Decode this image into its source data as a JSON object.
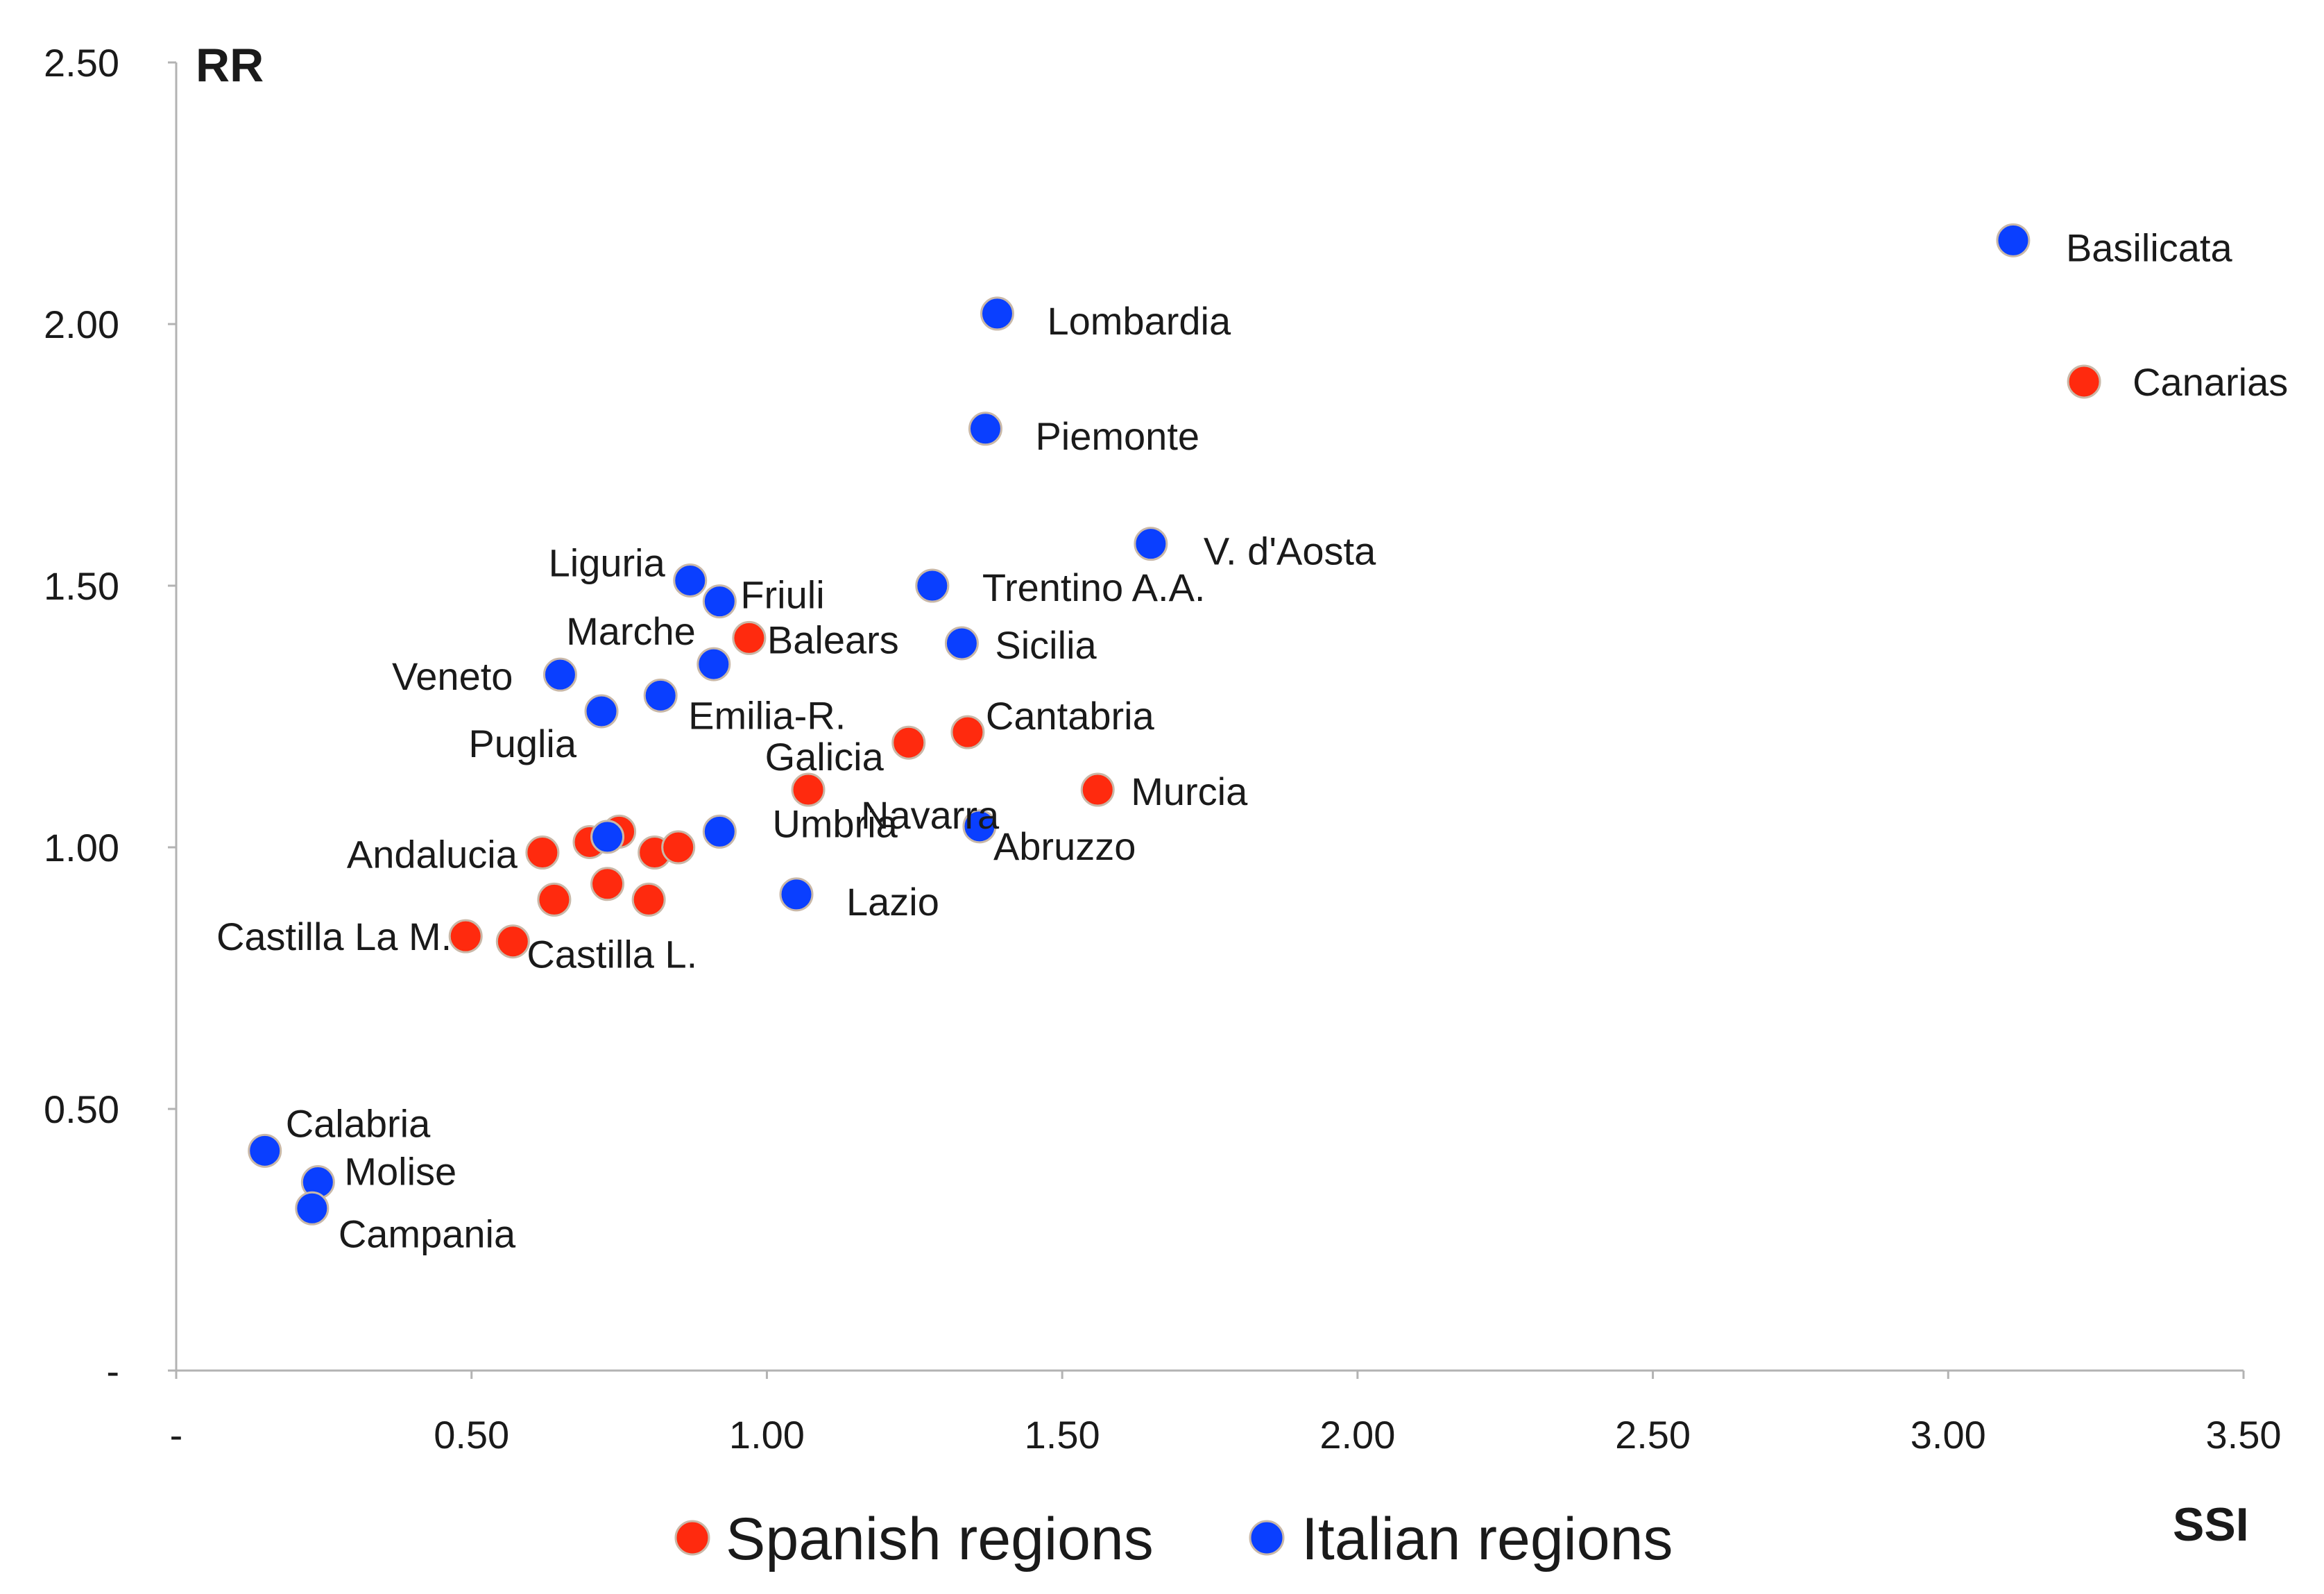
{
  "chart_data": {
    "type": "scatter",
    "title": "",
    "xlabel": "SSI",
    "ylabel": "RR",
    "xlim": [
      0,
      3.5
    ],
    "ylim": [
      0,
      2.5
    ],
    "grid": false,
    "x_ticks": [
      {
        "value": 0,
        "label": "-"
      },
      {
        "value": 0.5,
        "label": "0.50"
      },
      {
        "value": 1.0,
        "label": "1.00"
      },
      {
        "value": 1.5,
        "label": "1.50"
      },
      {
        "value": 2.0,
        "label": "2.00"
      },
      {
        "value": 2.5,
        "label": "2.50"
      },
      {
        "value": 3.0,
        "label": "3.00"
      },
      {
        "value": 3.5,
        "label": "3.50"
      }
    ],
    "y_ticks": [
      {
        "value": 0,
        "label": "-"
      },
      {
        "value": 0.5,
        "label": "0.50"
      },
      {
        "value": 1.0,
        "label": "1.00"
      },
      {
        "value": 1.5,
        "label": "1.50"
      },
      {
        "value": 2.0,
        "label": "2.00"
      },
      {
        "value": 2.5,
        "label": "2.50"
      }
    ],
    "legend_position": "bottom",
    "series": [
      {
        "name": "Spanish regions",
        "color": "#ff2a0e",
        "points": [
          {
            "x": 3.23,
            "y": 1.89,
            "label": "Canarias"
          },
          {
            "x": 0.97,
            "y": 1.4,
            "label": "Balears"
          },
          {
            "x": 1.34,
            "y": 1.22,
            "label": "Cantabria"
          },
          {
            "x": 1.24,
            "y": 1.2,
            "label": "Galicia"
          },
          {
            "x": 1.07,
            "y": 1.11,
            "label": "Navarra"
          },
          {
            "x": 1.56,
            "y": 1.11,
            "label": "Murcia"
          },
          {
            "x": 0.62,
            "y": 0.99,
            "label": "Andalucia"
          },
          {
            "x": 0.49,
            "y": 0.83,
            "label": "Castilla La M."
          },
          {
            "x": 0.57,
            "y": 0.82,
            "label": "Castilla L."
          },
          {
            "x": 0.7,
            "y": 1.01,
            "label": ""
          },
          {
            "x": 0.75,
            "y": 1.03,
            "label": ""
          },
          {
            "x": 0.81,
            "y": 0.99,
            "label": ""
          },
          {
            "x": 0.85,
            "y": 1.0,
            "label": ""
          },
          {
            "x": 0.64,
            "y": 0.9,
            "label": ""
          },
          {
            "x": 0.73,
            "y": 0.93,
            "label": ""
          },
          {
            "x": 0.8,
            "y": 0.9,
            "label": ""
          }
        ]
      },
      {
        "name": "Italian regions",
        "color": "#0a3fff",
        "points": [
          {
            "x": 3.11,
            "y": 2.16,
            "label": "Basilicata"
          },
          {
            "x": 1.39,
            "y": 2.02,
            "label": "Lombardia"
          },
          {
            "x": 1.37,
            "y": 1.8,
            "label": "Piemonte"
          },
          {
            "x": 1.65,
            "y": 1.58,
            "label": "V. d'Aosta"
          },
          {
            "x": 0.87,
            "y": 1.51,
            "label": "Liguria"
          },
          {
            "x": 0.92,
            "y": 1.47,
            "label": "Friuli"
          },
          {
            "x": 1.28,
            "y": 1.5,
            "label": "Trentino A.A."
          },
          {
            "x": 0.91,
            "y": 1.35,
            "label": "Marche"
          },
          {
            "x": 1.33,
            "y": 1.39,
            "label": "Sicilia"
          },
          {
            "x": 0.65,
            "y": 1.33,
            "label": "Veneto"
          },
          {
            "x": 0.82,
            "y": 1.29,
            "label": "Emilia-R."
          },
          {
            "x": 0.72,
            "y": 1.26,
            "label": "Puglia"
          },
          {
            "x": 0.92,
            "y": 1.03,
            "label": "Umbria"
          },
          {
            "x": 1.36,
            "y": 1.04,
            "label": "Abruzzo"
          },
          {
            "x": 1.05,
            "y": 0.91,
            "label": "Lazio"
          },
          {
            "x": 0.15,
            "y": 0.42,
            "label": "Calabria"
          },
          {
            "x": 0.24,
            "y": 0.36,
            "label": "Molise"
          },
          {
            "x": 0.23,
            "y": 0.31,
            "label": "Campania"
          },
          {
            "x": 0.73,
            "y": 1.02,
            "label": ""
          }
        ]
      }
    ]
  }
}
